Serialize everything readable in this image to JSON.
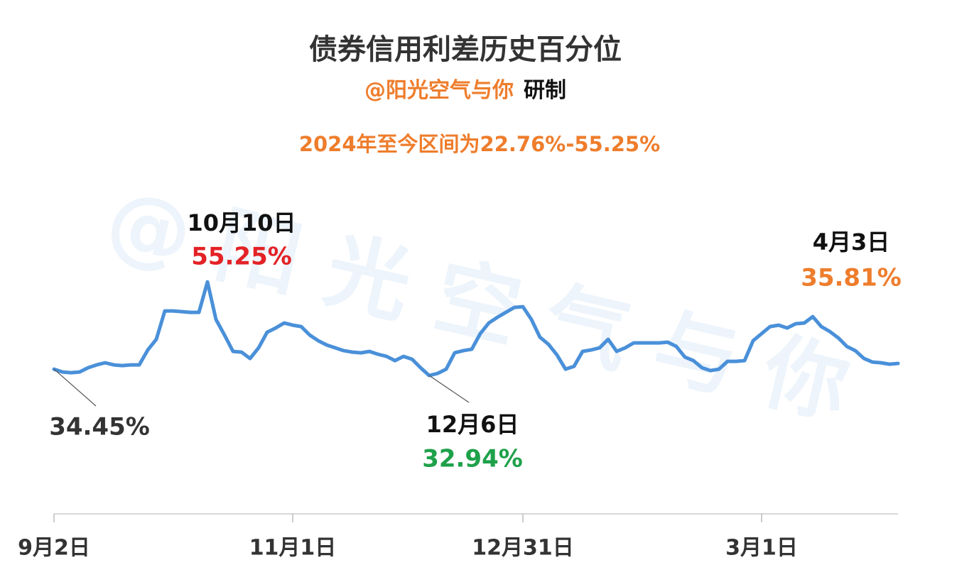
{
  "chart_data": {
    "type": "line",
    "title": "债券信用利差历史百分位",
    "subtitle": {
      "author": "@阳光空气与你",
      "suffix": "研制"
    },
    "note": "2024年至今区间为22.76%-55.25%",
    "watermark": "@阳光空气与你",
    "categories": [
      "9月2日",
      null,
      null,
      null,
      null,
      null,
      null,
      null,
      null,
      null,
      null,
      null,
      null,
      null,
      null,
      null,
      null,
      null,
      null,
      null,
      null,
      null,
      null,
      null,
      null,
      null,
      null,
      null,
      "11月1日",
      null,
      null,
      null,
      null,
      null,
      null,
      null,
      null,
      null,
      null,
      null,
      null,
      null,
      null,
      null,
      null,
      null,
      null,
      null,
      null,
      null,
      null,
      null,
      null,
      null,
      null,
      "12月31日",
      null,
      null,
      null,
      null,
      null,
      null,
      null,
      null,
      null,
      null,
      null,
      null,
      null,
      null,
      null,
      null,
      null,
      null,
      null,
      null,
      null,
      null,
      null,
      null,
      null,
      null,
      null,
      "3月1日",
      null,
      null,
      null,
      null,
      null,
      null,
      null,
      null,
      null,
      null,
      null,
      null,
      null,
      null,
      null,
      null
    ],
    "series": [
      {
        "name": "信用利差历史百分位",
        "color": "#4a90d9",
        "values": [
          34.45,
          33.77,
          33.6,
          33.77,
          34.79,
          35.47,
          35.97,
          35.47,
          35.3,
          35.47,
          35.47,
          39.02,
          41.56,
          48.32,
          48.32,
          48.16,
          47.99,
          47.99,
          55.25,
          46.29,
          42.57,
          38.68,
          38.51,
          36.99,
          39.53,
          43.25,
          44.26,
          45.45,
          44.94,
          44.6,
          42.57,
          41.22,
          40.2,
          39.53,
          38.85,
          38.51,
          38.34,
          38.68,
          38.0,
          37.5,
          36.48,
          37.5,
          36.82,
          34.79,
          32.94,
          33.43,
          34.45,
          38.34,
          38.85,
          39.19,
          42.91,
          45.45,
          46.8,
          47.99,
          49.17,
          49.34,
          46.29,
          42.06,
          40.37,
          37.83,
          34.45,
          35.13,
          38.68,
          39.02,
          39.53,
          41.56,
          38.68,
          39.53,
          40.71,
          40.71,
          40.71,
          40.71,
          40.88,
          39.86,
          37.33,
          36.48,
          34.79,
          34.11,
          34.45,
          36.31,
          36.31,
          36.48,
          41.22,
          42.91,
          44.6,
          44.94,
          44.26,
          45.28,
          45.45,
          46.97,
          44.6,
          43.42,
          41.9,
          39.86,
          38.85,
          36.99,
          36.14,
          35.97,
          35.63,
          35.81
        ],
        "value_labels": [
          "34.45%",
          null,
          null,
          null,
          null,
          null,
          null,
          null,
          null,
          null,
          null,
          null,
          null,
          null,
          null,
          null,
          null,
          null,
          "55.25%",
          null,
          null,
          null,
          null,
          null,
          null,
          null,
          null,
          null,
          null,
          null,
          null,
          null,
          null,
          null,
          null,
          null,
          null,
          null,
          null,
          null,
          null,
          null,
          null,
          null,
          "32.94%",
          null,
          null,
          null,
          null,
          null,
          null,
          null,
          null,
          null,
          null,
          null,
          null,
          null,
          null,
          null,
          null,
          null,
          null,
          null,
          null,
          null,
          null,
          null,
          null,
          null,
          null,
          null,
          null,
          null,
          null,
          null,
          null,
          null,
          null,
          null,
          null,
          null,
          null,
          null,
          null,
          null,
          null,
          null,
          null,
          null,
          null,
          null,
          null,
          null,
          null,
          null,
          null,
          null,
          null,
          "35.81%"
        ],
        "point_labels": [
          null,
          null,
          null,
          null,
          null,
          null,
          null,
          null,
          null,
          null,
          null,
          null,
          null,
          null,
          null,
          null,
          null,
          null,
          "10月10日",
          null,
          null,
          null,
          null,
          null,
          null,
          null,
          null,
          null,
          null,
          null,
          null,
          null,
          null,
          null,
          null,
          null,
          null,
          null,
          null,
          null,
          null,
          null,
          null,
          null,
          "12月6日",
          null,
          null,
          null,
          null,
          null,
          null,
          null,
          null,
          null,
          null,
          null,
          null,
          null,
          null,
          null,
          null,
          null,
          null,
          null,
          null,
          null,
          null,
          null,
          null,
          null,
          null,
          null,
          null,
          null,
          null,
          null,
          null,
          null,
          null,
          null,
          null,
          null,
          null,
          null,
          null,
          null,
          null,
          null,
          null,
          null,
          null,
          null,
          null,
          null,
          null,
          null,
          null,
          null,
          null,
          "4月3日"
        ],
        "value_label_colors": [
          "#333333",
          null,
          null,
          null,
          null,
          null,
          null,
          null,
          null,
          null,
          null,
          null,
          null,
          null,
          null,
          null,
          null,
          null,
          "#e32226",
          null,
          null,
          null,
          null,
          null,
          null,
          null,
          null,
          null,
          null,
          null,
          null,
          null,
          null,
          null,
          null,
          null,
          null,
          null,
          null,
          null,
          null,
          null,
          null,
          null,
          "#1ea14a",
          null,
          null,
          null,
          null,
          null,
          null,
          null,
          null,
          null,
          null,
          null,
          null,
          null,
          null,
          null,
          null,
          null,
          null,
          null,
          null,
          null,
          null,
          null,
          null,
          null,
          null,
          null,
          null,
          null,
          null,
          null,
          null,
          null,
          null,
          null,
          null,
          null,
          null,
          null,
          null,
          null,
          null,
          null,
          null,
          null,
          null,
          null,
          null,
          null,
          null,
          null,
          null,
          null,
          null,
          "#ee7d2c"
        ]
      }
    ],
    "ylim": [
      20,
      70
    ],
    "grid": false
  }
}
